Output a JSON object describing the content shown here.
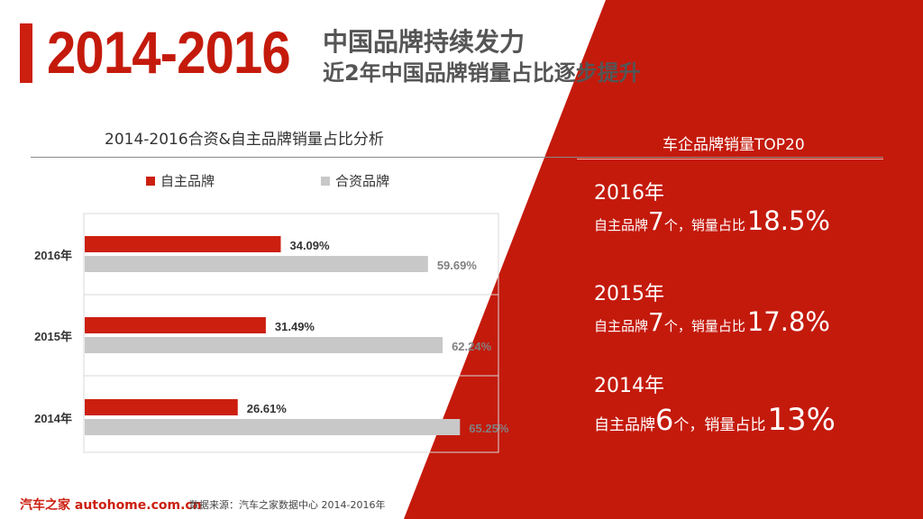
{
  "header": {
    "years_title": "2014-2016",
    "subtitle_line1": "中国品牌持续发力",
    "subtitle_line2": "近2年中国品牌销量占比逐步提升"
  },
  "colors": {
    "accent": "#cc1f10",
    "gray": "#c8c8c8",
    "dark_red_bg": "#c41a0c"
  },
  "chart_data": {
    "type": "bar",
    "orientation": "horizontal",
    "title": "2014-2016合资&自主品牌销量占比分析",
    "categories": [
      "2016年",
      "2015年",
      "2014年"
    ],
    "series": [
      {
        "name": "自主品牌",
        "color": "#cc1f10",
        "values": [
          34.09,
          31.49,
          26.61
        ],
        "labels": [
          "34.09%",
          "31.49%",
          "26.61%"
        ]
      },
      {
        "name": "合资品牌",
        "color": "#c8c8c8",
        "values": [
          59.69,
          62.24,
          65.25
        ],
        "labels": [
          "59.69%",
          "62.24%",
          "65.25%"
        ]
      }
    ],
    "xlim": [
      0,
      100
    ],
    "legend": "top",
    "grid": "horizontal separators"
  },
  "right_panel": {
    "title": "车企品牌销量TOP20",
    "entries": [
      {
        "year": "2016年",
        "prefix": "自主品牌",
        "count": "7",
        "mid": "个，销量占比",
        "pct": "18.5%"
      },
      {
        "year": "2015年",
        "prefix": "自主品牌",
        "count": "7",
        "mid": "个，销量占比",
        "pct": "17.8%"
      },
      {
        "year": "2014年",
        "prefix": "自主品牌",
        "count": "6",
        "mid": "个，销量占比",
        "pct": "13%"
      }
    ]
  },
  "footer": {
    "logo": "汽车之家 autohome.com.cn",
    "source": "数据来源：汽车之家数据中心 2014-2016年"
  }
}
